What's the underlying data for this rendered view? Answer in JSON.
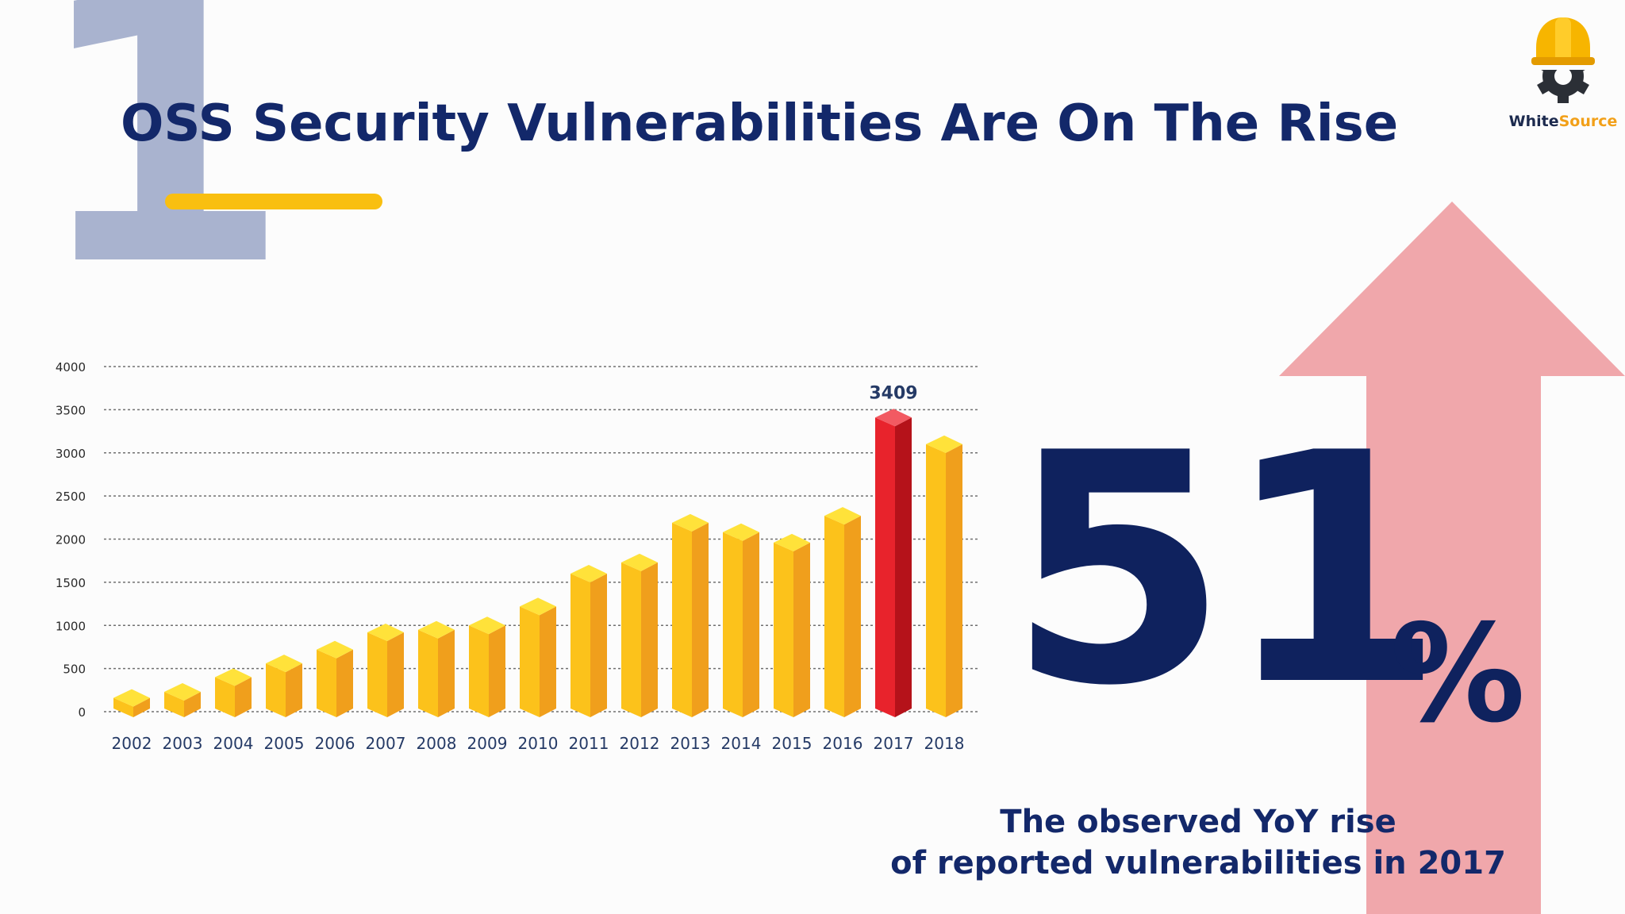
{
  "slide": {
    "numeral": "1",
    "title": "OSS Security Vulnerabilities Are On The Rise",
    "accent_color": "#f9bf10"
  },
  "logo": {
    "icon": "hardhat-gear-icon",
    "name_part1": "White",
    "name_part2": "Source"
  },
  "stat": {
    "number": "51",
    "unit": "%",
    "caption_line1": "The observed YoY rise",
    "caption_line2": "of reported vulnerabilities in 2017",
    "arrow_icon": "up-arrow-icon",
    "arrow_color": "#f0a7ab"
  },
  "chart_data": {
    "type": "bar",
    "categories": [
      "2002",
      "2003",
      "2004",
      "2005",
      "2006",
      "2007",
      "2008",
      "2009",
      "2010",
      "2011",
      "2012",
      "2013",
      "2014",
      "2015",
      "2016",
      "2017",
      "2018"
    ],
    "values": [
      160,
      230,
      400,
      560,
      720,
      920,
      950,
      1000,
      1220,
      1600,
      1730,
      2190,
      2080,
      1960,
      2270,
      3409,
      3100
    ],
    "highlight_index": 15,
    "highlight_label": "3409",
    "ylim": [
      0,
      4000
    ],
    "yticks": [
      0,
      500,
      1000,
      1500,
      2000,
      2500,
      3000,
      3500,
      4000
    ],
    "grid": true,
    "bar_color": "#fbbc13",
    "highlight_color": "#e8232c"
  }
}
